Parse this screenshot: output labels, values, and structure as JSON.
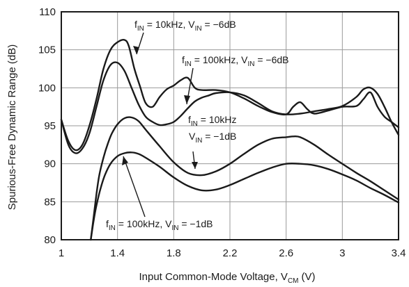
{
  "chart_data": {
    "type": "line",
    "xlabel": "Input Common-Mode Voltage, V",
    "xlabel_sub": "CM",
    "xlabel_unit": "(V)",
    "ylabel": "Spurious-Free Dynamic Range (dB)",
    "xlim": [
      1,
      3.4
    ],
    "ylim": [
      80,
      110
    ],
    "xticks": [
      1,
      1.4,
      1.8,
      2.2,
      2.6,
      3,
      3.4
    ],
    "xtick_labels": [
      "1",
      "1.4",
      "1.8",
      "2.2",
      "2.6",
      "3",
      "3.4"
    ],
    "yticks": [
      80,
      85,
      90,
      95,
      100,
      105,
      110
    ],
    "ytick_labels": [
      "80",
      "85",
      "90",
      "95",
      "100",
      "105",
      "110"
    ],
    "grid": true,
    "series": [
      {
        "name": "fIN = 10kHz, VIN = −6dB",
        "x": [
          1.0,
          1.05,
          1.1,
          1.15,
          1.2,
          1.25,
          1.3,
          1.35,
          1.4,
          1.45,
          1.48,
          1.52,
          1.56,
          1.6,
          1.65,
          1.7,
          1.75,
          1.8,
          1.85,
          1.9,
          1.95,
          2.0,
          2.1,
          2.2,
          2.3,
          2.4,
          2.5,
          2.6,
          2.65,
          2.7,
          2.75,
          2.8,
          2.9,
          3.0,
          3.1,
          3.15,
          3.2,
          3.25,
          3.3,
          3.35,
          3.4
        ],
        "y": [
          95.8,
          93.0,
          91.8,
          92.5,
          95.0,
          98.5,
          102.5,
          105.0,
          106.0,
          106.3,
          105.5,
          102.5,
          100.2,
          98.0,
          97.5,
          98.8,
          99.8,
          100.3,
          101.0,
          101.3,
          100.0,
          99.7,
          99.7,
          99.4,
          98.6,
          97.6,
          96.8,
          96.5,
          97.5,
          98.1,
          97.2,
          96.6,
          97.0,
          97.5,
          97.6,
          98.5,
          99.4,
          97.5,
          96.2,
          95.5,
          94.8
        ]
      },
      {
        "name": "fIN = 100kHz, VIN = −6dB",
        "x": [
          1.0,
          1.05,
          1.1,
          1.15,
          1.2,
          1.25,
          1.3,
          1.35,
          1.4,
          1.45,
          1.5,
          1.55,
          1.6,
          1.65,
          1.7,
          1.75,
          1.8,
          1.85,
          1.9,
          1.95,
          2.0,
          2.05,
          2.1,
          2.2,
          2.3,
          2.4,
          2.5,
          2.6,
          2.7,
          2.8,
          2.9,
          3.0,
          3.1,
          3.15,
          3.2,
          3.25,
          3.3,
          3.35,
          3.4
        ],
        "y": [
          95.8,
          92.5,
          91.4,
          92.0,
          94.0,
          97.5,
          101.0,
          103.0,
          103.3,
          102.2,
          100.0,
          97.8,
          96.2,
          95.5,
          95.1,
          95.2,
          95.5,
          96.3,
          97.3,
          98.2,
          98.7,
          99.0,
          99.3,
          99.4,
          99.0,
          98.0,
          96.9,
          96.5,
          96.6,
          96.9,
          97.2,
          97.6,
          98.8,
          99.8,
          100.0,
          99.2,
          97.5,
          95.5,
          93.8
        ]
      },
      {
        "name": "fIN = 10kHz, VIN = −1dB",
        "x": [
          1.21,
          1.23,
          1.25,
          1.27,
          1.3,
          1.33,
          1.36,
          1.4,
          1.45,
          1.5,
          1.55,
          1.6,
          1.7,
          1.8,
          1.9,
          2.0,
          2.1,
          2.2,
          2.3,
          2.4,
          2.5,
          2.6,
          2.65,
          2.7,
          2.8,
          2.9,
          3.0,
          3.1,
          3.2,
          3.3,
          3.4
        ],
        "y": [
          80.0,
          83.0,
          86.0,
          88.5,
          90.8,
          92.6,
          94.0,
          95.2,
          96.0,
          96.1,
          95.6,
          94.5,
          92.3,
          90.2,
          88.8,
          88.5,
          89.0,
          90.0,
          91.3,
          92.5,
          93.3,
          93.5,
          93.6,
          93.5,
          92.5,
          91.2,
          90.0,
          88.8,
          87.7,
          86.5,
          85.3
        ]
      },
      {
        "name": "fIN = 100kHz, VIN = −1dB",
        "x": [
          1.21,
          1.23,
          1.25,
          1.28,
          1.31,
          1.35,
          1.4,
          1.45,
          1.5,
          1.55,
          1.6,
          1.7,
          1.8,
          1.9,
          2.0,
          2.1,
          2.2,
          2.3,
          2.4,
          2.5,
          2.6,
          2.7,
          2.8,
          2.9,
          3.0,
          3.1,
          3.2,
          3.3,
          3.4
        ],
        "y": [
          80.0,
          82.5,
          84.5,
          86.8,
          88.5,
          90.0,
          91.0,
          91.4,
          91.5,
          91.3,
          90.8,
          89.6,
          88.2,
          87.1,
          86.5,
          86.6,
          87.2,
          88.0,
          88.8,
          89.5,
          90.0,
          90.0,
          89.8,
          89.3,
          88.6,
          87.8,
          86.8,
          85.9,
          84.9
        ]
      }
    ],
    "annotations": [
      {
        "text": "f",
        "sub1": "IN",
        "mid": " = 10kHz, V",
        "sub2": "IN",
        "tail": " = −6dB"
      },
      {
        "text": "f",
        "sub1": "IN",
        "mid": " = 100kHz, V",
        "sub2": "IN",
        "tail": " = −6dB"
      },
      {
        "text": "f",
        "sub1": "IN",
        "mid": " = 10kHz",
        "sub2": "",
        "tail": ""
      },
      {
        "text": "V",
        "sub1": "IN",
        "mid": " = −1dB",
        "sub2": "",
        "tail": ""
      },
      {
        "text": "f",
        "sub1": "IN",
        "mid": " = 100kHz, V",
        "sub2": "IN",
        "tail": " = −1dB"
      }
    ]
  }
}
